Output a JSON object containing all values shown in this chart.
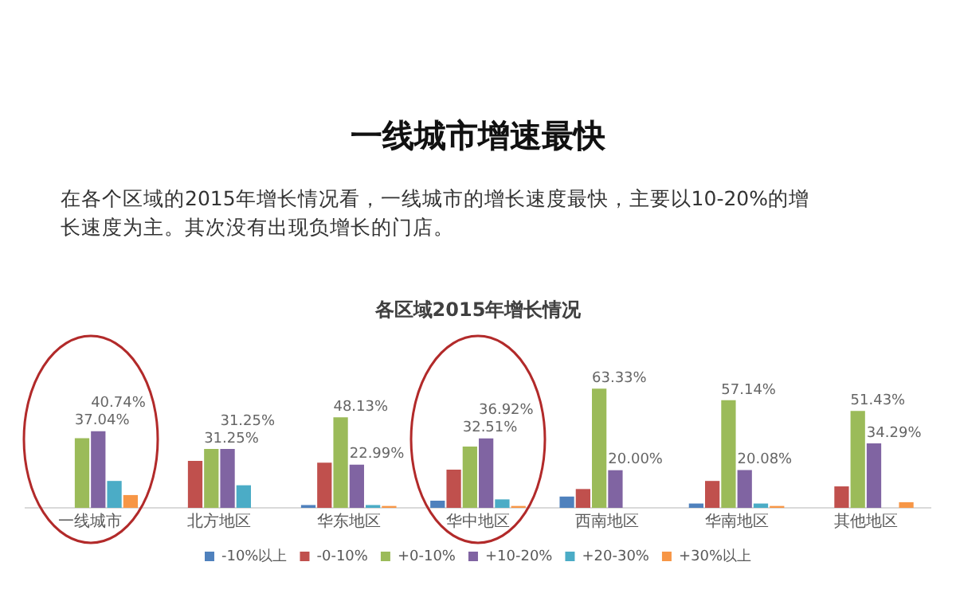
{
  "chart_data": {
    "type": "bar",
    "title": "各区域2015年增长情况",
    "annotations": [
      "一线城市增速最快",
      "在各个区域的2015年增长情况看，一线城市的增长速度最快，主要以10-20%的增长速度为主。其次没有出现负增长的门店。"
    ],
    "categories": [
      "一线城市",
      "北方地区",
      "华东地区",
      "华中地区",
      "西南地区",
      "华南地区",
      "其他地区"
    ],
    "series": [
      {
        "name": "-10%以上",
        "color": "#4f81bd",
        "values": [
          0,
          0,
          1.5,
          3.8,
          6,
          2.3,
          0
        ]
      },
      {
        "name": "-0-10%",
        "color": "#c0504d",
        "values": [
          0,
          25,
          24,
          20.3,
          10,
          14.3,
          11.4
        ]
      },
      {
        "name": "+0-10%",
        "color": "#9bbb59",
        "values": [
          37.04,
          31.25,
          48.13,
          32.51,
          63.33,
          57.14,
          51.43
        ],
        "value_labels": [
          "37.04%",
          "31.25%",
          "48.13%",
          "32.51%",
          "63.33%",
          "57.14%",
          "51.43%"
        ]
      },
      {
        "name": "+10-20%",
        "color": "#8064a2",
        "values": [
          40.74,
          31.25,
          22.99,
          36.92,
          20.0,
          20.08,
          34.29
        ],
        "value_labels": [
          "40.74%",
          "31.25%",
          "22.99%",
          "36.92%",
          "20.00%",
          "20.08%",
          "34.29%"
        ]
      },
      {
        "name": "+20-30%",
        "color": "#4bacc6",
        "values": [
          14.3,
          12,
          1.5,
          4.5,
          0,
          2.3,
          0
        ]
      },
      {
        "name": "+30%以上",
        "color": "#f79646",
        "values": [
          6.8,
          0,
          1,
          1,
          0,
          1,
          3
        ]
      }
    ],
    "tick_labels": "x",
    "grid": false,
    "legend": "bottom"
  }
}
